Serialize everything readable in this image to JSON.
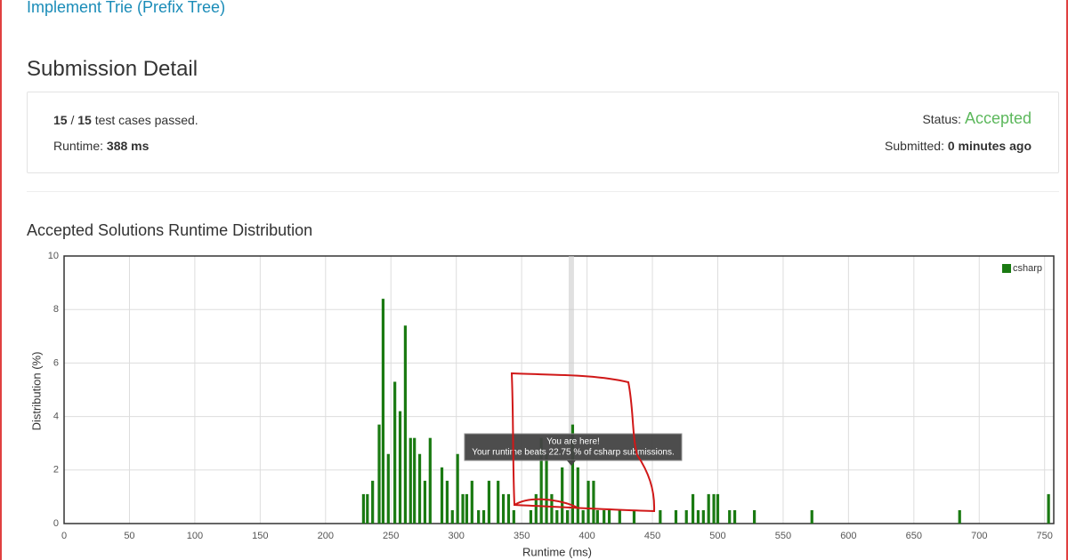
{
  "header": {
    "problem_link": "Implement Trie (Prefix Tree)"
  },
  "page_title": "Submission Detail",
  "summary": {
    "cases_passed": "15",
    "cases_separator": "/",
    "cases_total": "15",
    "cases_text": "test cases passed.",
    "runtime_label": "Runtime:",
    "runtime_value": "388 ms",
    "status_label": "Status:",
    "status_value": "Accepted",
    "submitted_label": "Submitted:",
    "submitted_value": "0 minutes ago"
  },
  "chart_section_title": "Accepted Solutions Runtime Distribution",
  "chart_data": {
    "type": "bar",
    "x_label": "Runtime (ms)",
    "y_label": "Distribution (%)",
    "xlim": [
      0,
      757
    ],
    "ylim": [
      0,
      10
    ],
    "xticks": [
      0,
      50,
      100,
      150,
      200,
      250,
      300,
      350,
      400,
      450,
      500,
      550,
      600,
      650,
      700,
      750
    ],
    "yticks": [
      0,
      2,
      4,
      6,
      8,
      10
    ],
    "grid": true,
    "legend": "top-right",
    "highlight_x": 388,
    "tooltip_title": "You are here!",
    "tooltip_text": "Your runtime beats 22.75 % of csharp submissions.",
    "series": [
      {
        "name": "csharp",
        "color": "#1a7a12",
        "x": [
          229,
          232,
          236,
          241,
          244,
          248,
          253,
          257,
          261,
          265,
          268,
          272,
          276,
          280,
          289,
          293,
          297,
          301,
          305,
          308,
          312,
          317,
          321,
          325,
          332,
          336,
          340,
          344,
          357,
          361,
          365,
          369,
          373,
          377,
          381,
          385,
          389,
          393,
          397,
          401,
          405,
          408,
          413,
          417,
          425,
          436,
          456,
          468,
          476,
          481,
          485,
          489,
          493,
          497,
          500,
          509,
          513,
          528,
          572,
          685,
          753
        ],
        "values": [
          1.1,
          1.1,
          1.6,
          3.7,
          8.4,
          2.6,
          5.3,
          4.2,
          7.4,
          3.2,
          3.2,
          2.6,
          1.6,
          3.2,
          2.1,
          1.6,
          0.5,
          2.6,
          1.1,
          1.1,
          1.6,
          0.5,
          0.5,
          1.6,
          1.6,
          1.1,
          1.1,
          0.5,
          0.5,
          1.1,
          3.2,
          2.6,
          1.1,
          0.5,
          2.1,
          0.5,
          3.7,
          2.1,
          0.5,
          1.6,
          1.6,
          0.5,
          0.5,
          0.5,
          0.5,
          0.5,
          0.5,
          0.5,
          0.5,
          1.1,
          0.5,
          0.5,
          1.1,
          1.1,
          1.1,
          0.5,
          0.5,
          0.5,
          0.5,
          0.5,
          1.1
        ]
      }
    ]
  }
}
